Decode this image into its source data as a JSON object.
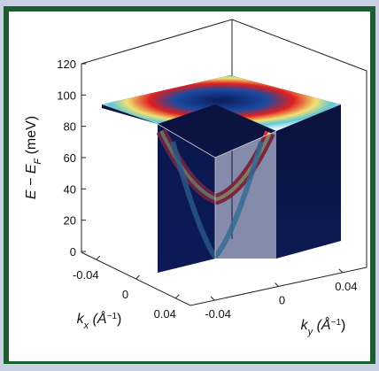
{
  "chart_data": {
    "type": "cube3d",
    "ylabel": [
      "E − E",
      "F",
      " (meV)"
    ],
    "xlabel": [
      "k",
      "x",
      " (Å",
      "−1",
      ")"
    ],
    "zlabel": [
      "k",
      "y",
      " (Å",
      "−1",
      ")"
    ],
    "ylim": [
      0,
      120
    ],
    "yticks": [
      0,
      20,
      40,
      60,
      80,
      100,
      120
    ],
    "xlim": [
      -0.055,
      0.055
    ],
    "xticks": [
      -0.04,
      0,
      0.04
    ],
    "zlim": [
      -0.055,
      0.055
    ],
    "zticks": [
      -0.04,
      0,
      0.04
    ]
  }
}
